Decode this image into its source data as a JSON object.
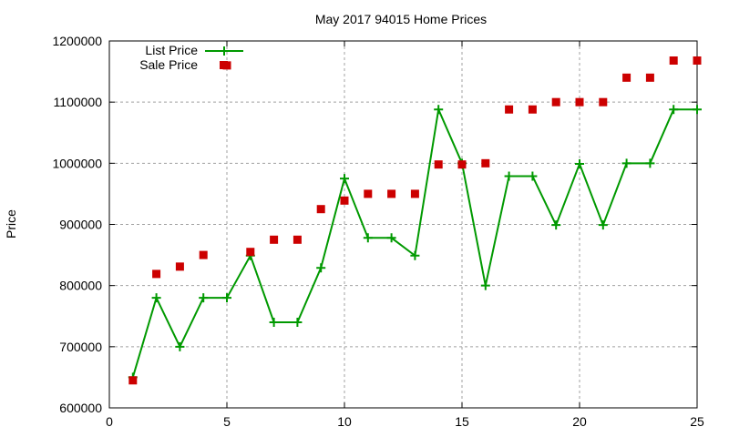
{
  "chart_data": {
    "type": "line",
    "title": "May 2017 94015 Home Prices",
    "xlabel": "",
    "ylabel": "Price",
    "xlim": [
      0,
      25
    ],
    "ylim": [
      600000,
      1200000
    ],
    "xticks": [
      0,
      5,
      10,
      15,
      20,
      25
    ],
    "yticks": [
      600000,
      700000,
      800000,
      900000,
      1000000,
      1100000,
      1200000
    ],
    "grid": true,
    "legend_position": "top-left",
    "x": [
      1,
      2,
      3,
      4,
      5,
      6,
      7,
      8,
      9,
      10,
      11,
      12,
      13,
      14,
      15,
      16,
      17,
      18,
      19,
      20,
      21,
      22,
      23,
      24,
      25
    ],
    "series": [
      {
        "name": "List Price",
        "style": "linespoints",
        "color": "#009900",
        "values": [
          650000,
          780000,
          700000,
          780000,
          780000,
          849000,
          740000,
          740000,
          829000,
          975000,
          878000,
          878000,
          849000,
          1088000,
          1000000,
          800000,
          979000,
          979000,
          899000,
          999000,
          899000,
          1000000,
          1000000,
          1088000,
          1088000
        ]
      },
      {
        "name": "Sale Price",
        "style": "points",
        "color": "#cc0000",
        "values": [
          645000,
          819000,
          831000,
          850000,
          1160000,
          855000,
          875000,
          875000,
          925000,
          939000,
          950000,
          950000,
          950000,
          998000,
          998000,
          1000000,
          1088000,
          1088000,
          1100000,
          1100000,
          1100000,
          1140000,
          1140000,
          1168000,
          1168000
        ]
      }
    ]
  }
}
